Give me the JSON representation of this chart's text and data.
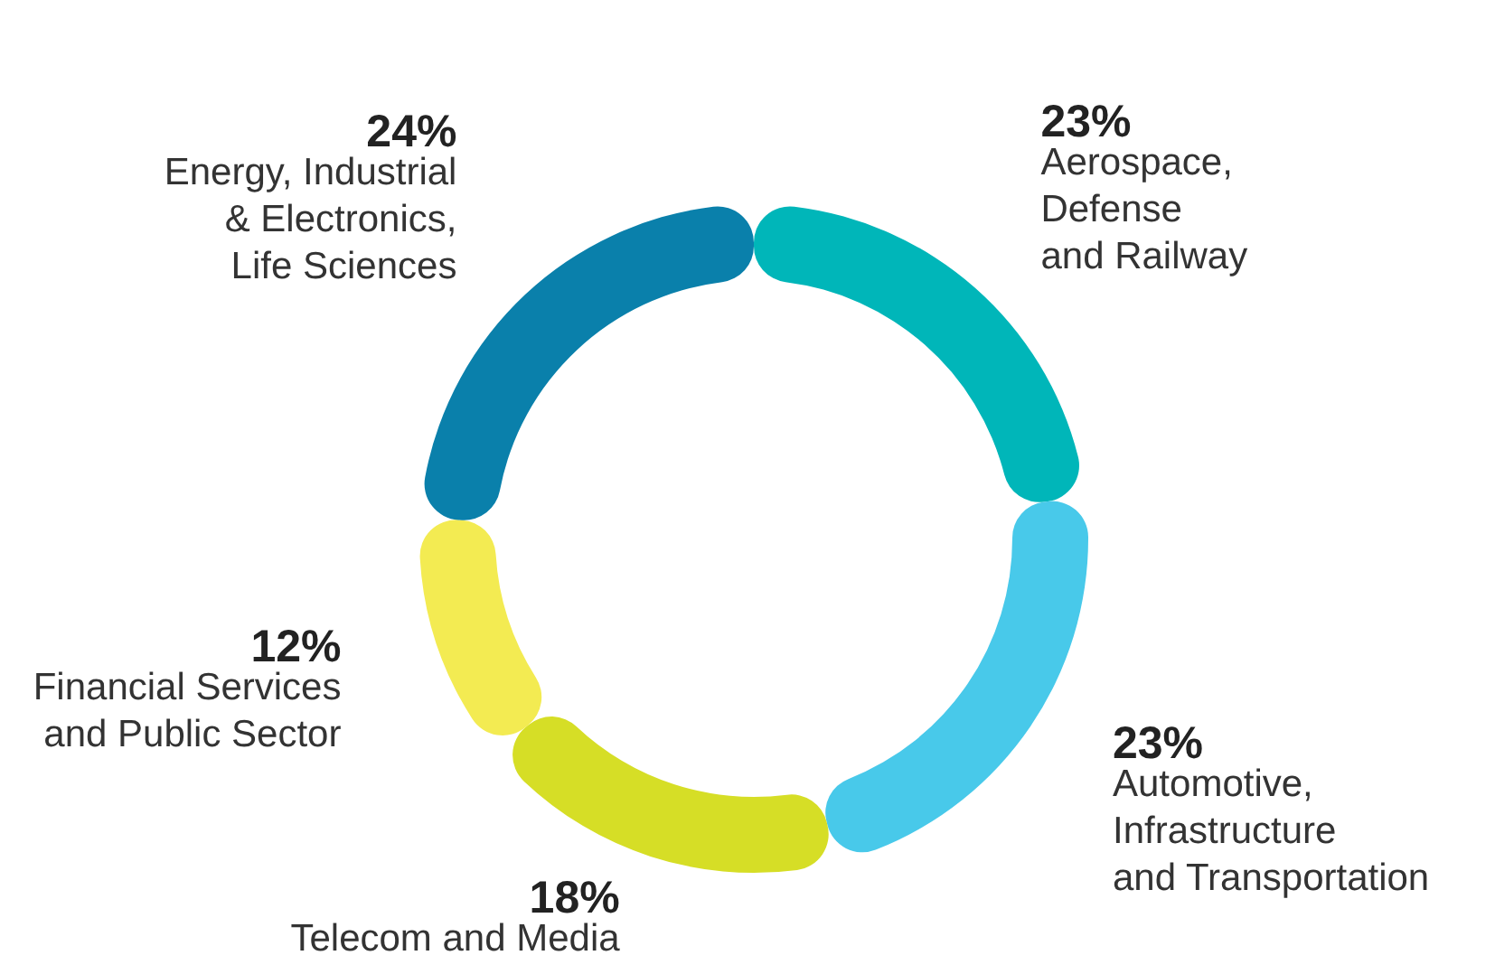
{
  "chart_data": {
    "type": "donut",
    "categories": [
      "Aerospace,\nDefense\nand Railway",
      "Automotive,\nInfrastructure\nand Transportation",
      "Telecom and Media",
      "Financial Services\nand Public Sector",
      "Energy, Industrial\n& Electronics,\nLife Sciences"
    ],
    "values": [
      23,
      23,
      18,
      12,
      24
    ],
    "value_labels": [
      "23%",
      "23%",
      "18%",
      "12%",
      "24%"
    ],
    "colors": [
      "#00b6b9",
      "#48c9ea",
      "#d6de26",
      "#f3eb52",
      "#0a80ab"
    ]
  }
}
